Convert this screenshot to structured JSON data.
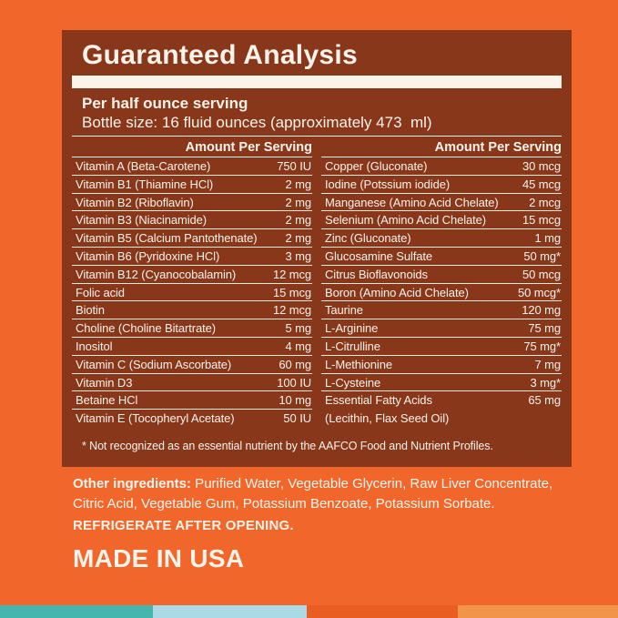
{
  "panel": {
    "title": "Guaranteed Analysis",
    "serving_line": "Per half ounce serving",
    "bottle_line": "Bottle size: 16 fluid ounces (approximately 473  ml)",
    "footnote": "* Not recognized as an essential nutrient by the AAFCO Food and Nutrient Profiles."
  },
  "table": {
    "amount_header": "Amount Per Serving",
    "left_rows": [
      {
        "label": "Vitamin A (Beta-Carotene)",
        "value": "750 IU"
      },
      {
        "label": "Vitamin B1 (Thiamine HCl)",
        "value": "2 mg"
      },
      {
        "label": "Vitamin B2 (Riboflavin)",
        "value": "2 mg"
      },
      {
        "label": "Vitamin B3 (Niacinamide)",
        "value": "2 mg"
      },
      {
        "label": "Vitamin B5 (Calcium Pantothenate)",
        "value": "2 mg"
      },
      {
        "label": "Vitamin B6 (Pyridoxine HCl)",
        "value": "3 mg"
      },
      {
        "label": "Vitamin B12 (Cyanocobalamin)",
        "value": "12 mcg"
      },
      {
        "label": "Folic acid",
        "value": "15 mcg"
      },
      {
        "label": "Biotin",
        "value": "12 mcg"
      },
      {
        "label": "Choline (Choline Bitartrate)",
        "value": "5 mg"
      },
      {
        "label": "Inositol",
        "value": "4 mg"
      },
      {
        "label": "Vitamin C (Sodium Ascorbate)",
        "value": "60 mg"
      },
      {
        "label": "Vitamin D3",
        "value": "100 IU"
      },
      {
        "label": "Betaine HCl",
        "value": "10 mg"
      },
      {
        "label": "Vitamin E (Tocopheryl Acetate)",
        "value": "50 IU"
      }
    ],
    "right_rows": [
      {
        "label": "Copper (Gluconate)",
        "value": "30 mcg"
      },
      {
        "label": "Iodine (Potssium iodide)",
        "value": "45 mcg"
      },
      {
        "label": "Manganese (Amino Acid Chelate)",
        "value": "2 mcg"
      },
      {
        "label": "Selenium (Amino Acid Chelate)",
        "value": "15 mcg"
      },
      {
        "label": "Zinc (Gluconate)",
        "value": "1 mg"
      },
      {
        "label": "Glucosamine Sulfate",
        "value": "50 mg*"
      },
      {
        "label": "Citrus Bioflavonoids",
        "value": "50 mcg"
      },
      {
        "label": "Boron (Amino Acid Chelate)",
        "value": "50 mcg*"
      },
      {
        "label": "Taurine",
        "value": "120 mg"
      },
      {
        "label": "L-Arginine",
        "value": "75 mg"
      },
      {
        "label": "L-Citrulline",
        "value": "75 mg*"
      },
      {
        "label": "L-Methionine",
        "value": "7 mg"
      },
      {
        "label": "L-Cysteine",
        "value": "3 mg*"
      },
      {
        "label": "Essential Fatty Acids",
        "label2": "(Lecithin, Flax Seed Oil)",
        "value": "65 mg"
      }
    ]
  },
  "footer": {
    "other_label": "Other ingredients:",
    "other_text": " Purified Water, Vegetable Glycerin, Raw Liver Concentrate, Citric Acid, Vegetable Gum, Potassium Benzoate, Potassium Sorbate.",
    "refrigerate": "REFRIGERATE AFTER OPENING.",
    "made_in": "MADE IN USA"
  },
  "colors": {
    "background_orange": "#F1662B",
    "panel_brown": "#88371A",
    "text_cream": "#FCF3EA",
    "strip_teal": "#45B6AE",
    "strip_light_blue": "#ABDAE7",
    "strip_orange": "#E95C22",
    "strip_light_orange": "#F2944A"
  },
  "bottom_strip": [
    "teal",
    "light_blue",
    "orange",
    "light_orange"
  ]
}
